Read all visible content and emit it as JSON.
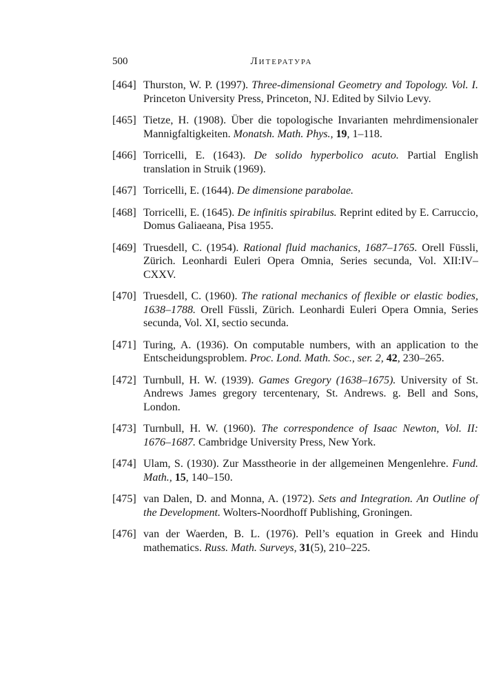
{
  "page": {
    "number": "500",
    "running_head": "Литература"
  },
  "entries": [
    {
      "label": "[464]",
      "segments": [
        {
          "style": "plain",
          "text": "Thurston, W. P. (1997). "
        },
        {
          "style": "italic",
          "text": "Three-dimensional Geometry and Topology. Vol. I."
        },
        {
          "style": "plain",
          "text": " Princeton University Press, Princeton, NJ. Edited by Silvio Levy."
        }
      ]
    },
    {
      "label": "[465]",
      "segments": [
        {
          "style": "plain",
          "text": "Tietze, H. (1908). Über die topologische Invarianten mehrdimensionaler Mannigfaltigkeiten. "
        },
        {
          "style": "italic",
          "text": "Monatsh. Math. Phys.,"
        },
        {
          "style": "plain",
          "text": " "
        },
        {
          "style": "bold",
          "text": "19"
        },
        {
          "style": "plain",
          "text": ", 1–118."
        }
      ]
    },
    {
      "label": "[466]",
      "segments": [
        {
          "style": "plain",
          "text": "Torricelli, E. (1643). "
        },
        {
          "style": "italic",
          "text": "De solido hyperbolico acuto."
        },
        {
          "style": "plain",
          "text": " Partial English translation in Struik (1969)."
        }
      ]
    },
    {
      "label": "[467]",
      "segments": [
        {
          "style": "plain",
          "text": "Torricelli, E. (1644). "
        },
        {
          "style": "italic",
          "text": "De dimensione parabolae."
        }
      ]
    },
    {
      "label": "[468]",
      "segments": [
        {
          "style": "plain",
          "text": "Torricelli, E. (1645). "
        },
        {
          "style": "italic",
          "text": "De infinitis spirabilus."
        },
        {
          "style": "plain",
          "text": " Reprint edited by E. Carruccio, Domus Galiaeana, Pisa 1955."
        }
      ]
    },
    {
      "label": "[469]",
      "segments": [
        {
          "style": "plain",
          "text": "Truesdell, C. (1954). "
        },
        {
          "style": "italic",
          "text": "Rational fluid machanics, 1687–1765."
        },
        {
          "style": "plain",
          "text": " Orell Füssli, Zürich. Leonhardi Euleri Opera Omnia, Series secunda, Vol. XII:IV–CXXV."
        }
      ]
    },
    {
      "label": "[470]",
      "segments": [
        {
          "style": "plain",
          "text": "Truesdell, C. (1960). "
        },
        {
          "style": "italic",
          "text": "The rational mechanics of flexible or elastic bodies, 1638–1788."
        },
        {
          "style": "plain",
          "text": " Orell Füssli, Zürich. Leonhardi Euleri Opera Omnia, Series secunda, Vol. XI, sectio secunda."
        }
      ]
    },
    {
      "label": "[471]",
      "segments": [
        {
          "style": "plain",
          "text": "Turing, A. (1936). On computable numbers, with an application to the Entscheidungsproblem. "
        },
        {
          "style": "italic",
          "text": "Proc. Lond. Math. Soc., ser. 2,"
        },
        {
          "style": "plain",
          "text": " "
        },
        {
          "style": "bold",
          "text": "42"
        },
        {
          "style": "plain",
          "text": ", 230–265."
        }
      ]
    },
    {
      "label": "[472]",
      "segments": [
        {
          "style": "plain",
          "text": "Turnbull, H. W. (1939). "
        },
        {
          "style": "italic",
          "text": "Games Gregory (1638–1675)."
        },
        {
          "style": "plain",
          "text": " University of St. Andrews James gregory tercentenary, St. Andrews. g. Bell and Sons, London."
        }
      ]
    },
    {
      "label": "[473]",
      "segments": [
        {
          "style": "plain",
          "text": "Turnbull, H. W. (1960). "
        },
        {
          "style": "italic",
          "text": "The correspondence of Isaac Newton, Vol. II: 1676–1687."
        },
        {
          "style": "plain",
          "text": " Cambridge University Press, New York."
        }
      ]
    },
    {
      "label": "[474]",
      "segments": [
        {
          "style": "plain",
          "text": "Ulam, S. (1930). Zur Masstheorie in der allgemeinen Mengenlehre. "
        },
        {
          "style": "italic",
          "text": "Fund. Math.,"
        },
        {
          "style": "plain",
          "text": " "
        },
        {
          "style": "bold",
          "text": "15"
        },
        {
          "style": "plain",
          "text": ", 140–150."
        }
      ]
    },
    {
      "label": "[475]",
      "segments": [
        {
          "style": "plain",
          "text": "van Dalen, D. and Monna, A. (1972). "
        },
        {
          "style": "italic",
          "text": "Sets and Integration. An Outline of the Development."
        },
        {
          "style": "plain",
          "text": " Wolters-Noordhoff Publishing, Groningen."
        }
      ]
    },
    {
      "label": "[476]",
      "segments": [
        {
          "style": "plain",
          "text": "van der Waerden, B. L. (1976). Pell’s equation in Greek and Hindu mathematics. "
        },
        {
          "style": "italic",
          "text": "Russ. Math. Surveys,"
        },
        {
          "style": "plain",
          "text": " "
        },
        {
          "style": "bold",
          "text": "31"
        },
        {
          "style": "plain",
          "text": "(5), 210–225."
        }
      ]
    }
  ]
}
